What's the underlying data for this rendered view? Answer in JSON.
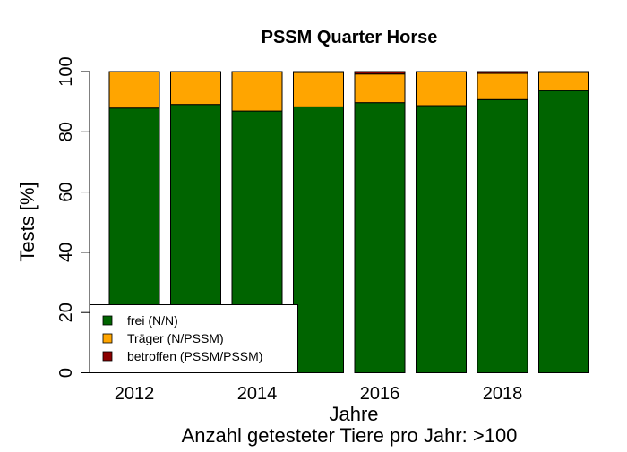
{
  "chart_data": {
    "type": "bar",
    "stacked": true,
    "title": "PSSM Quarter Horse",
    "xlabel": "Jahre",
    "subtitle": "Anzahl getesteter Tiere pro Jahr: >100",
    "ylabel": "Tests [%]",
    "ylim": [
      0,
      100
    ],
    "yticks": [
      "0",
      "20",
      "40",
      "60",
      "80",
      "100"
    ],
    "categories": [
      "2012",
      "2013",
      "2014",
      "2015",
      "2016",
      "2017",
      "2018",
      "2019"
    ],
    "xtick_labels": [
      "2012",
      "2014",
      "2016",
      "2018"
    ],
    "grid": false,
    "legend_position": "bottom-left",
    "series": [
      {
        "name": "frei (N/N)",
        "color": "#006400",
        "values": [
          87.9,
          89.1,
          86.9,
          88.3,
          89.7,
          88.7,
          90.7,
          93.7
        ]
      },
      {
        "name": "Träger (N/PSSM)",
        "color": "#FFA500",
        "values": [
          12.1,
          10.9,
          13.1,
          11.4,
          9.5,
          11.3,
          8.7,
          6.0
        ]
      },
      {
        "name": "betroffen (PSSM/PSSM)",
        "color": "#8B0000",
        "values": [
          0,
          0,
          0,
          0.3,
          0.8,
          0,
          0.6,
          0.3
        ]
      }
    ]
  }
}
